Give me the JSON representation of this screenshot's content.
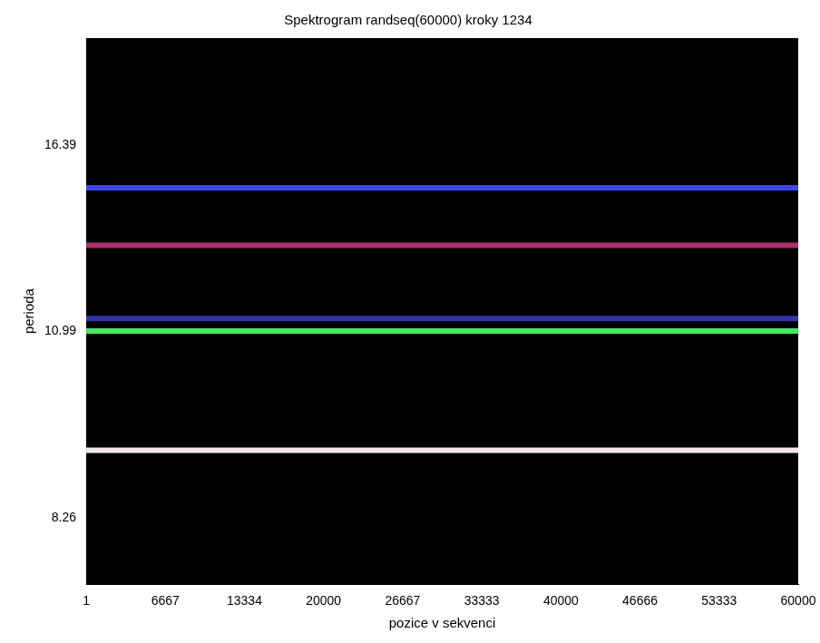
{
  "chart_data": {
    "type": "line",
    "title": "Spektrogram randseq(60000) kroky 1234",
    "x_label": "pozice v sekvenci",
    "y_label": "perioda",
    "x": [
      1,
      60000
    ],
    "series": [
      {
        "color": "#3a48e8",
        "values": [
          14.75,
          14.75
        ]
      },
      {
        "color": "#a8306c",
        "values": [
          12.97,
          12.97
        ]
      },
      {
        "color": "#3434a8",
        "values": [
          11.25,
          11.25
        ]
      },
      {
        "color": "#44e866",
        "values": [
          11.0,
          11.0
        ]
      },
      {
        "color": "#f2e8ee",
        "values": [
          9.08,
          9.08
        ]
      }
    ],
    "xlim": [
      1,
      60000
    ],
    "xticks": [
      1,
      6667,
      13334,
      20000,
      26667,
      33333,
      40000,
      46666,
      53333,
      60000
    ],
    "ylim": [
      7.59,
      22.9
    ],
    "yticks": [
      8.26,
      10.99,
      16.39
    ],
    "grid": false
  }
}
